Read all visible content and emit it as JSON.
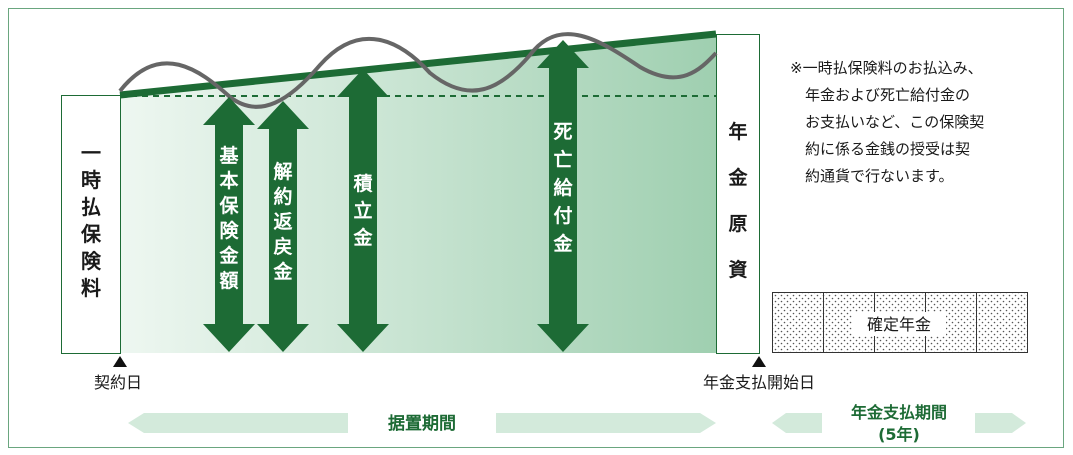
{
  "left_box_label": "一時払保険料",
  "right_box_label": "年金原資",
  "arrows": [
    {
      "id": "basic",
      "label": "基本保険金額"
    },
    {
      "id": "surrender",
      "label": "解約返戻金"
    },
    {
      "id": "accumulated",
      "label": "積立金"
    },
    {
      "id": "death",
      "label": "死亡給付金"
    }
  ],
  "note_lines": [
    "※一時払保険料のお払込み、",
    "年金および死亡給付金の",
    "お支払いなど、この保険契",
    "約に係る金銭の授受は契",
    "約通貨で行ないます。"
  ],
  "fixed_annuity_label": "確定年金",
  "contract_date_label": "契約日",
  "payment_start_label": "年金支払開始日",
  "deferral_period_label": "据置期間",
  "payment_period_label": "年金支払期間",
  "payment_period_sub": "(5年)",
  "colors": {
    "dark_green": "#1d6b35",
    "light_green": "#d3eadb",
    "area_green_top": "#a9d4b7",
    "area_green_bottom": "#f2f9f4",
    "curve_gray": "#666666"
  }
}
